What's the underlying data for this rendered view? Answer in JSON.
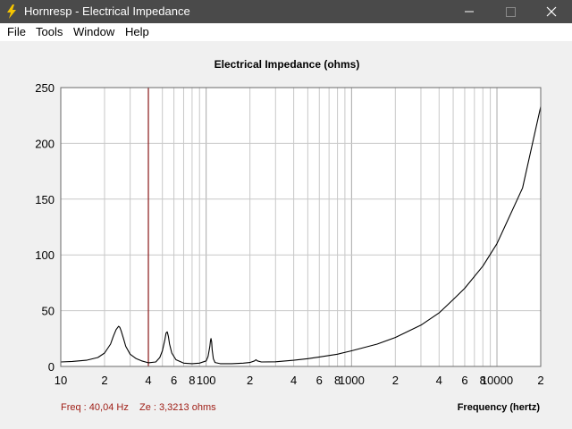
{
  "window": {
    "title": "Hornresp - Electrical Impedance",
    "icon": "lightning-bolt-icon",
    "buttons": [
      "minimize-icon",
      "maximize-icon",
      "close-icon"
    ]
  },
  "menu": {
    "items": [
      "File",
      "Tools",
      "Window",
      "Help"
    ]
  },
  "colors": {
    "curve": "#000000",
    "cursor": "#8b1a1a",
    "readout": "#a02018",
    "grid": "#c8c8c8",
    "plot_bg": "#ffffff"
  },
  "readout": {
    "freq": "Freq : 40,04 Hz",
    "ze": "Ze : 3,3213 ohms"
  },
  "chart_data": {
    "type": "line",
    "title": "Electrical Impedance (ohms)",
    "xlabel": "Frequency (hertz)",
    "ylabel": "",
    "x_scale": "log",
    "xlim": [
      10,
      20000
    ],
    "ylim": [
      0,
      250
    ],
    "grid": true,
    "cursor_x": 40.04,
    "y_ticks": [
      "0",
      "50",
      "100",
      "150",
      "200",
      "250"
    ],
    "y_tick_values": [
      0,
      50,
      100,
      150,
      200,
      250
    ],
    "x_ticks": [
      "10",
      "2",
      "4",
      "6",
      "8",
      "100",
      "2",
      "4",
      "6",
      "8",
      "1000",
      "2",
      "4",
      "6",
      "8",
      "10000",
      "2"
    ],
    "x_tick_values": [
      10,
      20,
      40,
      60,
      80,
      100,
      200,
      400,
      600,
      800,
      1000,
      2000,
      4000,
      6000,
      8000,
      10000,
      20000
    ],
    "series": [
      {
        "x": [
          10,
          12,
          15,
          18,
          20,
          22,
          23,
          24,
          25,
          25.5,
          26,
          27,
          28,
          30,
          33,
          36,
          40,
          45,
          48,
          50,
          52,
          53,
          54,
          55,
          56,
          58,
          62,
          70,
          80,
          90,
          100,
          103,
          106,
          107,
          108,
          109,
          110,
          112,
          115,
          125,
          150,
          180,
          200,
          215,
          220,
          225,
          240,
          300,
          400,
          500,
          600,
          800,
          1000,
          1500,
          2000,
          3000,
          4000,
          5000,
          6000,
          8000,
          10000,
          15000,
          20000
        ],
        "y": [
          4,
          4.5,
          5.5,
          8,
          12,
          20,
          27,
          33,
          36,
          35,
          32,
          25,
          18,
          11,
          7,
          5,
          3.3,
          4,
          8,
          14,
          24,
          30,
          31,
          27,
          20,
          12,
          6,
          3,
          2.5,
          3,
          5,
          9,
          18,
          23,
          25,
          22,
          15,
          7,
          3.5,
          2.5,
          2.5,
          3,
          3.5,
          5,
          6,
          5,
          4,
          4.2,
          5.5,
          7,
          8.5,
          11,
          14,
          20,
          26,
          37,
          48,
          60,
          70,
          90,
          110,
          160,
          233
        ]
      }
    ]
  }
}
